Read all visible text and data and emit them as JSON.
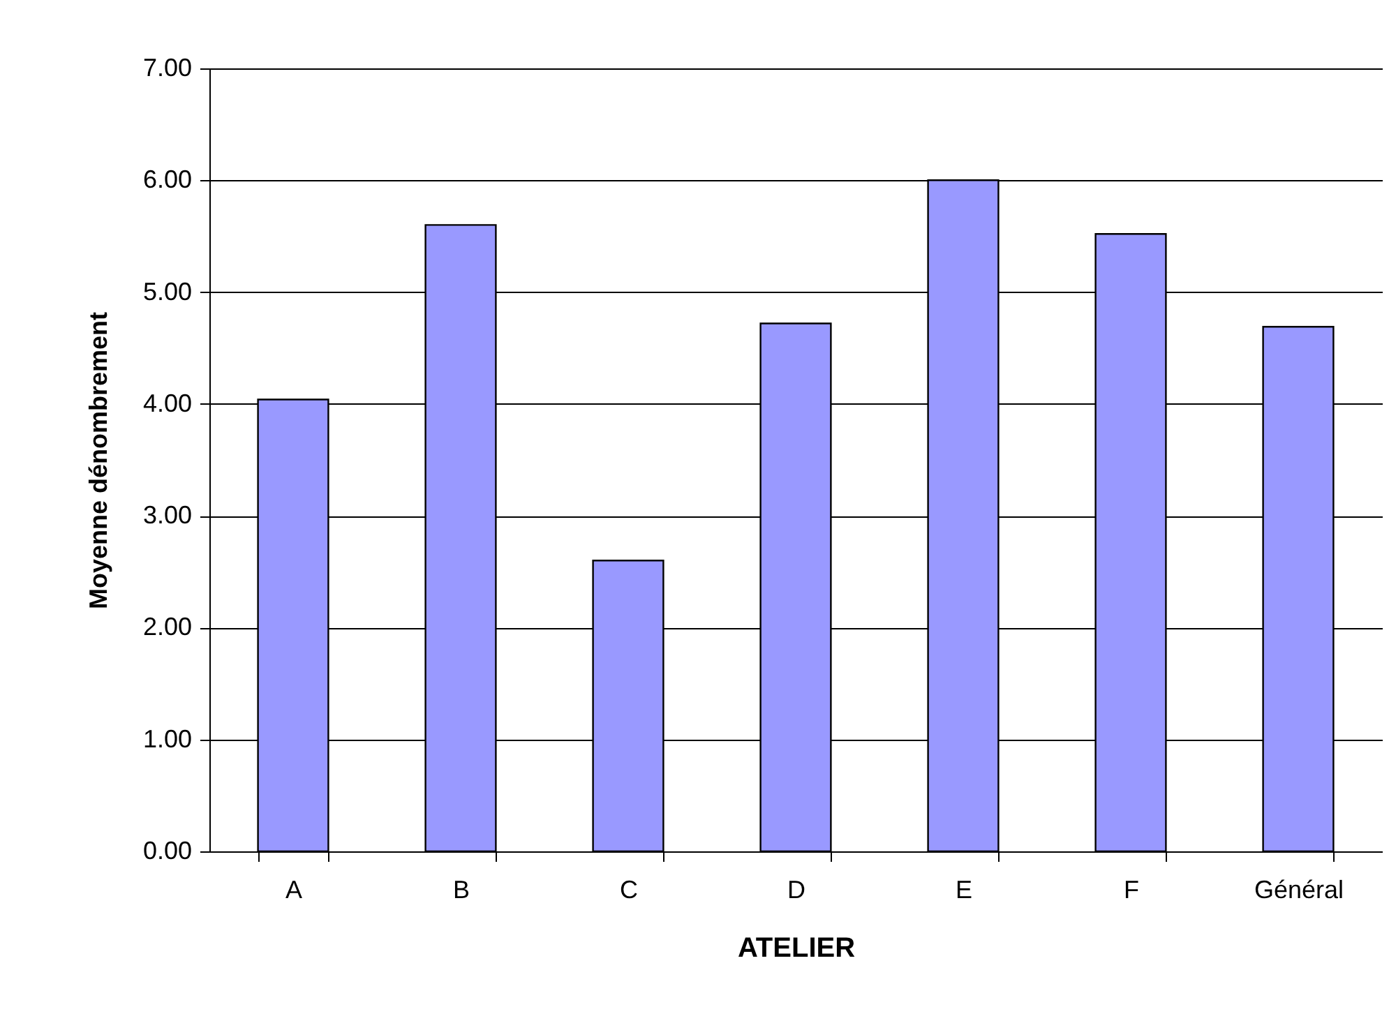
{
  "chart_data": {
    "type": "bar",
    "xlabel": "ATELIER",
    "ylabel": "Moyenne dénombrement",
    "categories": [
      "A",
      "B",
      "C",
      "D",
      "E",
      "F",
      "Général"
    ],
    "values": [
      4.04,
      5.6,
      2.6,
      4.72,
      6.0,
      5.52,
      4.69
    ],
    "color": "#9999ff",
    "ylim": [
      0,
      7
    ],
    "yticks": [
      {
        "value": 0,
        "label": "0.00"
      },
      {
        "value": 1,
        "label": "1.00"
      },
      {
        "value": 2,
        "label": "2.00"
      },
      {
        "value": 3,
        "label": "3.00"
      },
      {
        "value": 4,
        "label": "4.00"
      },
      {
        "value": 5,
        "label": "5.00"
      },
      {
        "value": 6,
        "label": "6.00"
      },
      {
        "value": 7,
        "label": "7.00"
      }
    ],
    "grid": "y"
  }
}
